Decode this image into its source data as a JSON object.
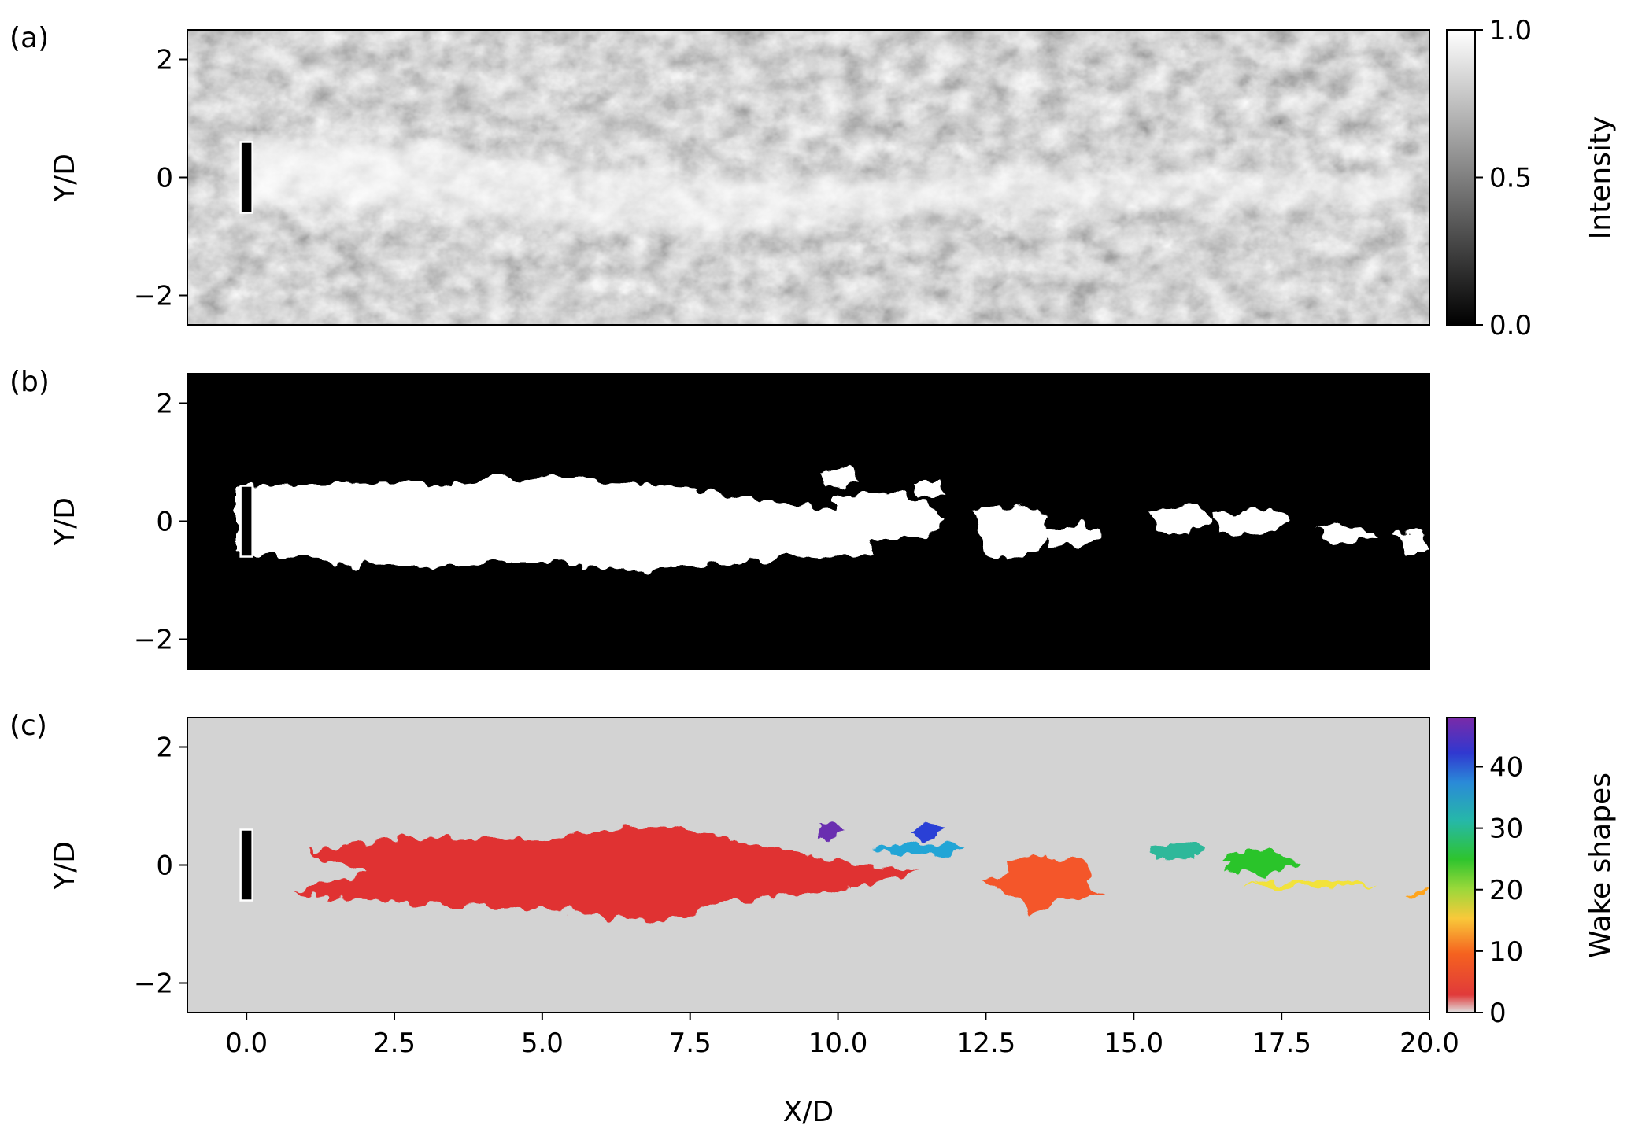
{
  "chart_data": [
    {
      "type": "heatmap",
      "panel_label": "(a)",
      "ylabel": "Y/D",
      "xlim": [
        -1.0,
        20.0
      ],
      "ylim": [
        -2.5,
        2.5
      ],
      "yticks": [
        {
          "v": 2,
          "label": "2"
        },
        {
          "v": 0,
          "label": "0"
        },
        {
          "v": -2,
          "label": "−2"
        }
      ],
      "colormap": "grayscale",
      "colorbar": {
        "label": "Intensity",
        "range": [
          0.0,
          1.0
        ],
        "ticks": [
          {
            "v": 1.0,
            "label": "1.0"
          },
          {
            "v": 0.5,
            "label": "0.5"
          },
          {
            "v": 0.0,
            "label": "0.0"
          }
        ]
      },
      "body": {
        "x": [
          -0.1,
          0.1
        ],
        "y": [
          -0.6,
          0.6
        ]
      }
    },
    {
      "type": "heatmap",
      "panel_label": "(b)",
      "ylabel": "Y/D",
      "xlim": [
        -1.0,
        20.0
      ],
      "ylim": [
        -2.5,
        2.5
      ],
      "yticks": [
        {
          "v": 2,
          "label": "2"
        },
        {
          "v": 0,
          "label": "0"
        },
        {
          "v": -2,
          "label": "−2"
        }
      ],
      "colormap": "binary",
      "body": {
        "x": [
          -0.1,
          0.1
        ],
        "y": [
          -0.6,
          0.6
        ]
      }
    },
    {
      "type": "heatmap",
      "panel_label": "(c)",
      "ylabel": "Y/D",
      "xlabel": "X/D",
      "xlim": [
        -1.0,
        20.0
      ],
      "ylim": [
        -2.5,
        2.5
      ],
      "yticks": [
        {
          "v": 2,
          "label": "2"
        },
        {
          "v": 0,
          "label": "0"
        },
        {
          "v": -2,
          "label": "−2"
        }
      ],
      "xticks": [
        {
          "v": 0.0,
          "label": "0.0"
        },
        {
          "v": 2.5,
          "label": "2.5"
        },
        {
          "v": 5.0,
          "label": "5.0"
        },
        {
          "v": 7.5,
          "label": "7.5"
        },
        {
          "v": 10.0,
          "label": "10.0"
        },
        {
          "v": 12.5,
          "label": "12.5"
        },
        {
          "v": 15.0,
          "label": "15.0"
        },
        {
          "v": 17.5,
          "label": "17.5"
        },
        {
          "v": 20.0,
          "label": "20.0"
        }
      ],
      "background_color": "#d3d3d3",
      "colorbar": {
        "label": "Wake shapes",
        "range": [
          0,
          48
        ],
        "ticks": [
          {
            "v": 40,
            "label": "40"
          },
          {
            "v": 30,
            "label": "30"
          },
          {
            "v": 20,
            "label": "20"
          },
          {
            "v": 10,
            "label": "10"
          },
          {
            "v": 0,
            "label": "0"
          }
        ]
      },
      "body": {
        "x": [
          -0.1,
          0.1
        ],
        "y": [
          -0.6,
          0.6
        ]
      },
      "shapes": [
        {
          "id": 1,
          "color": "#e03030",
          "x_range": [
            0.0,
            11.5
          ],
          "y_range": [
            -1.0,
            0.75
          ]
        },
        {
          "id": 5,
          "color": "#f4572a",
          "x_range": [
            12.4,
            14.6
          ],
          "y_range": [
            -0.8,
            0.25
          ]
        },
        {
          "id": 10,
          "color": "#ffa41c",
          "x_range": [
            19.6,
            20.0
          ],
          "y_range": [
            -0.55,
            -0.45
          ]
        },
        {
          "id": 13,
          "color": "#f2e23a",
          "x_range": [
            16.7,
            19.3
          ],
          "y_range": [
            -0.4,
            -0.25
          ]
        },
        {
          "id": 20,
          "color": "#29c429",
          "x_range": [
            16.4,
            17.8
          ],
          "y_range": [
            -0.2,
            0.3
          ]
        },
        {
          "id": 28,
          "color": "#2fb89a",
          "x_range": [
            15.2,
            16.2
          ],
          "y_range": [
            0.0,
            0.45
          ]
        },
        {
          "id": 35,
          "color": "#22a5d6",
          "x_range": [
            10.5,
            12.3
          ],
          "y_range": [
            0.15,
            0.4
          ]
        },
        {
          "id": 42,
          "color": "#2b3fd6",
          "x_range": [
            11.2,
            11.8
          ],
          "y_range": [
            0.4,
            0.75
          ]
        },
        {
          "id": 46,
          "color": "#6a2fb0",
          "x_range": [
            9.6,
            10.1
          ],
          "y_range": [
            0.45,
            0.7
          ]
        }
      ]
    }
  ]
}
